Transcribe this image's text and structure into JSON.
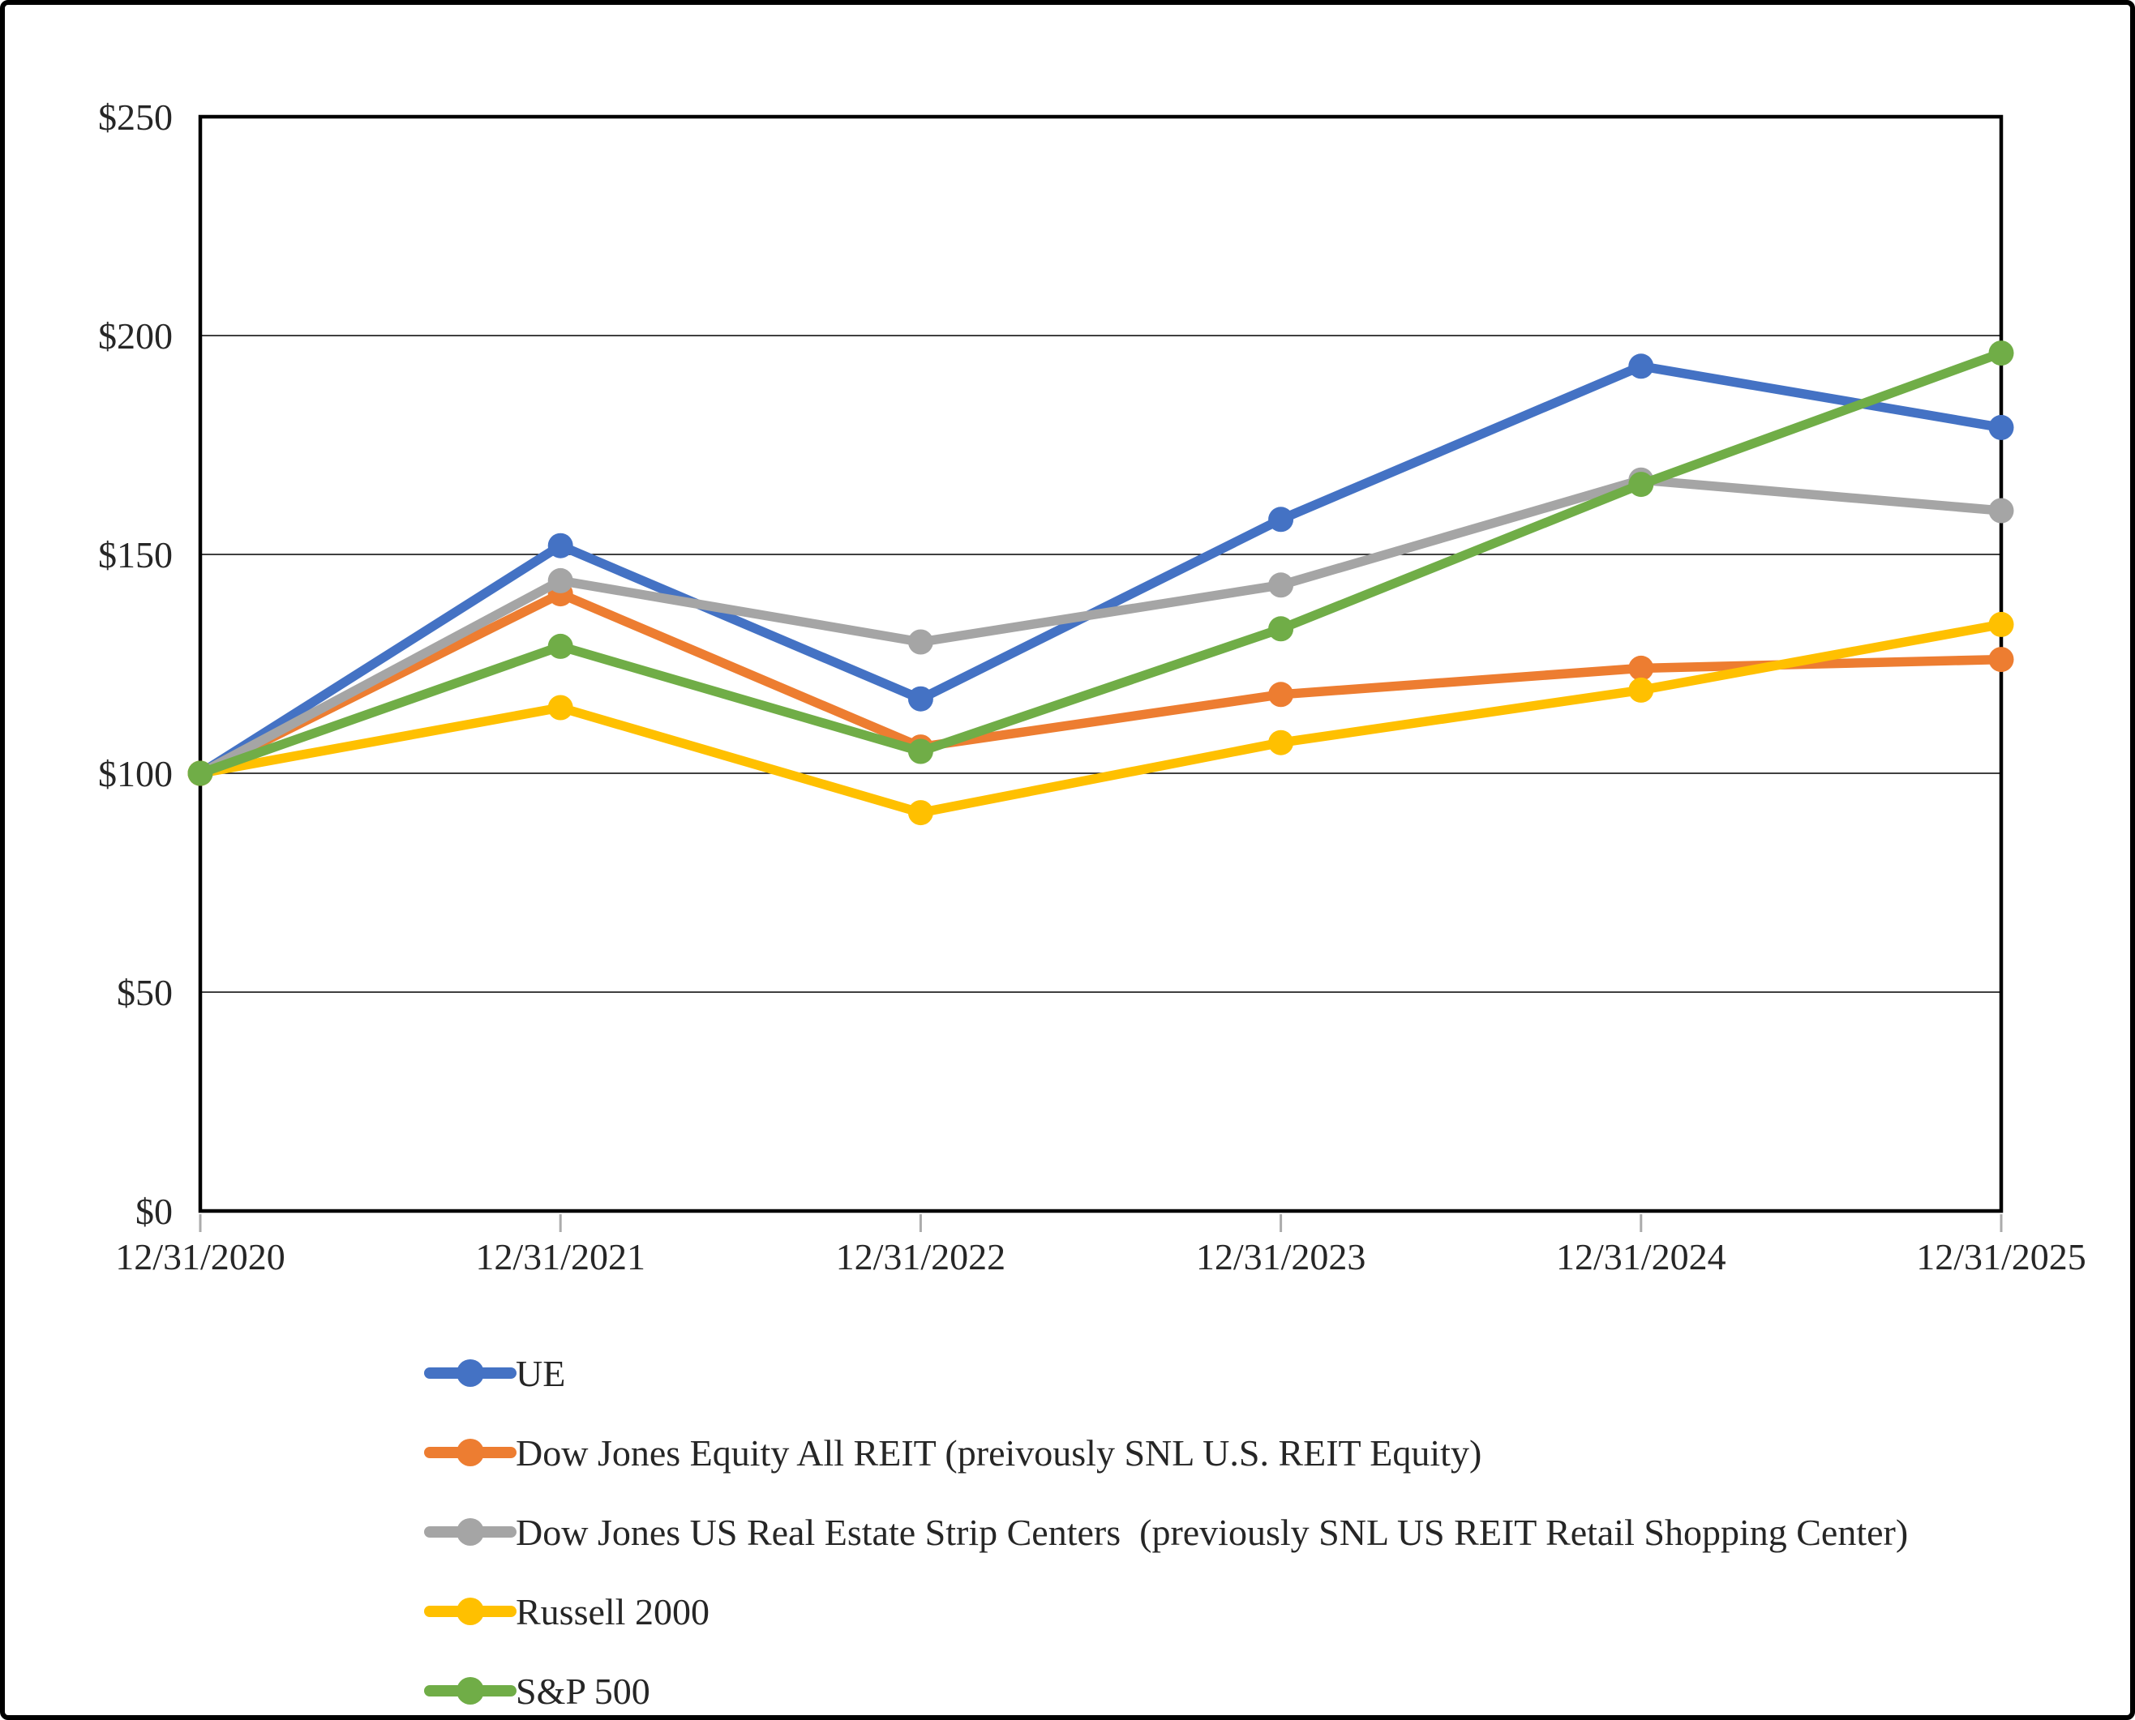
{
  "chart_data": {
    "type": "line",
    "categories": [
      "12/31/2020",
      "12/31/2021",
      "12/31/2022",
      "12/31/2023",
      "12/31/2024",
      "12/31/2025"
    ],
    "y_axis": {
      "min": 0,
      "max": 250,
      "tick_step": 50,
      "tick_labels": [
        "$0",
        "$50",
        "$100",
        "$150",
        "$200",
        "$250"
      ],
      "grid": true
    },
    "series": [
      {
        "name": "UE",
        "color": "#4472C4",
        "values": [
          100,
          152,
          117,
          158,
          193,
          179
        ]
      },
      {
        "name": "Dow Jones Equity All REIT (preivously SNL U.S. REIT Equity)",
        "color": "#ED7D31",
        "values": [
          100,
          141,
          106,
          118,
          124,
          126
        ]
      },
      {
        "name": "Dow Jones US Real Estate Strip Centers  (previously SNL US REIT Retail Shopping Center)",
        "color": "#A5A5A5",
        "values": [
          100,
          144,
          130,
          143,
          167,
          160
        ]
      },
      {
        "name": "Russell 2000",
        "color": "#FFC000",
        "values": [
          100,
          115,
          91,
          107,
          119,
          134
        ]
      },
      {
        "name": "S&P 500",
        "color": "#70AD47",
        "values": [
          100,
          129,
          105,
          133,
          166,
          196
        ]
      }
    ],
    "legend_position": "bottom-left",
    "marker": "circle"
  },
  "styles": {
    "background": "#FFFFFF",
    "outer_border_color": "#000000",
    "plot_border_color": "#000000",
    "grid_color": "#000000",
    "tick_color": "#ABABAB",
    "text_color": "#262626"
  }
}
